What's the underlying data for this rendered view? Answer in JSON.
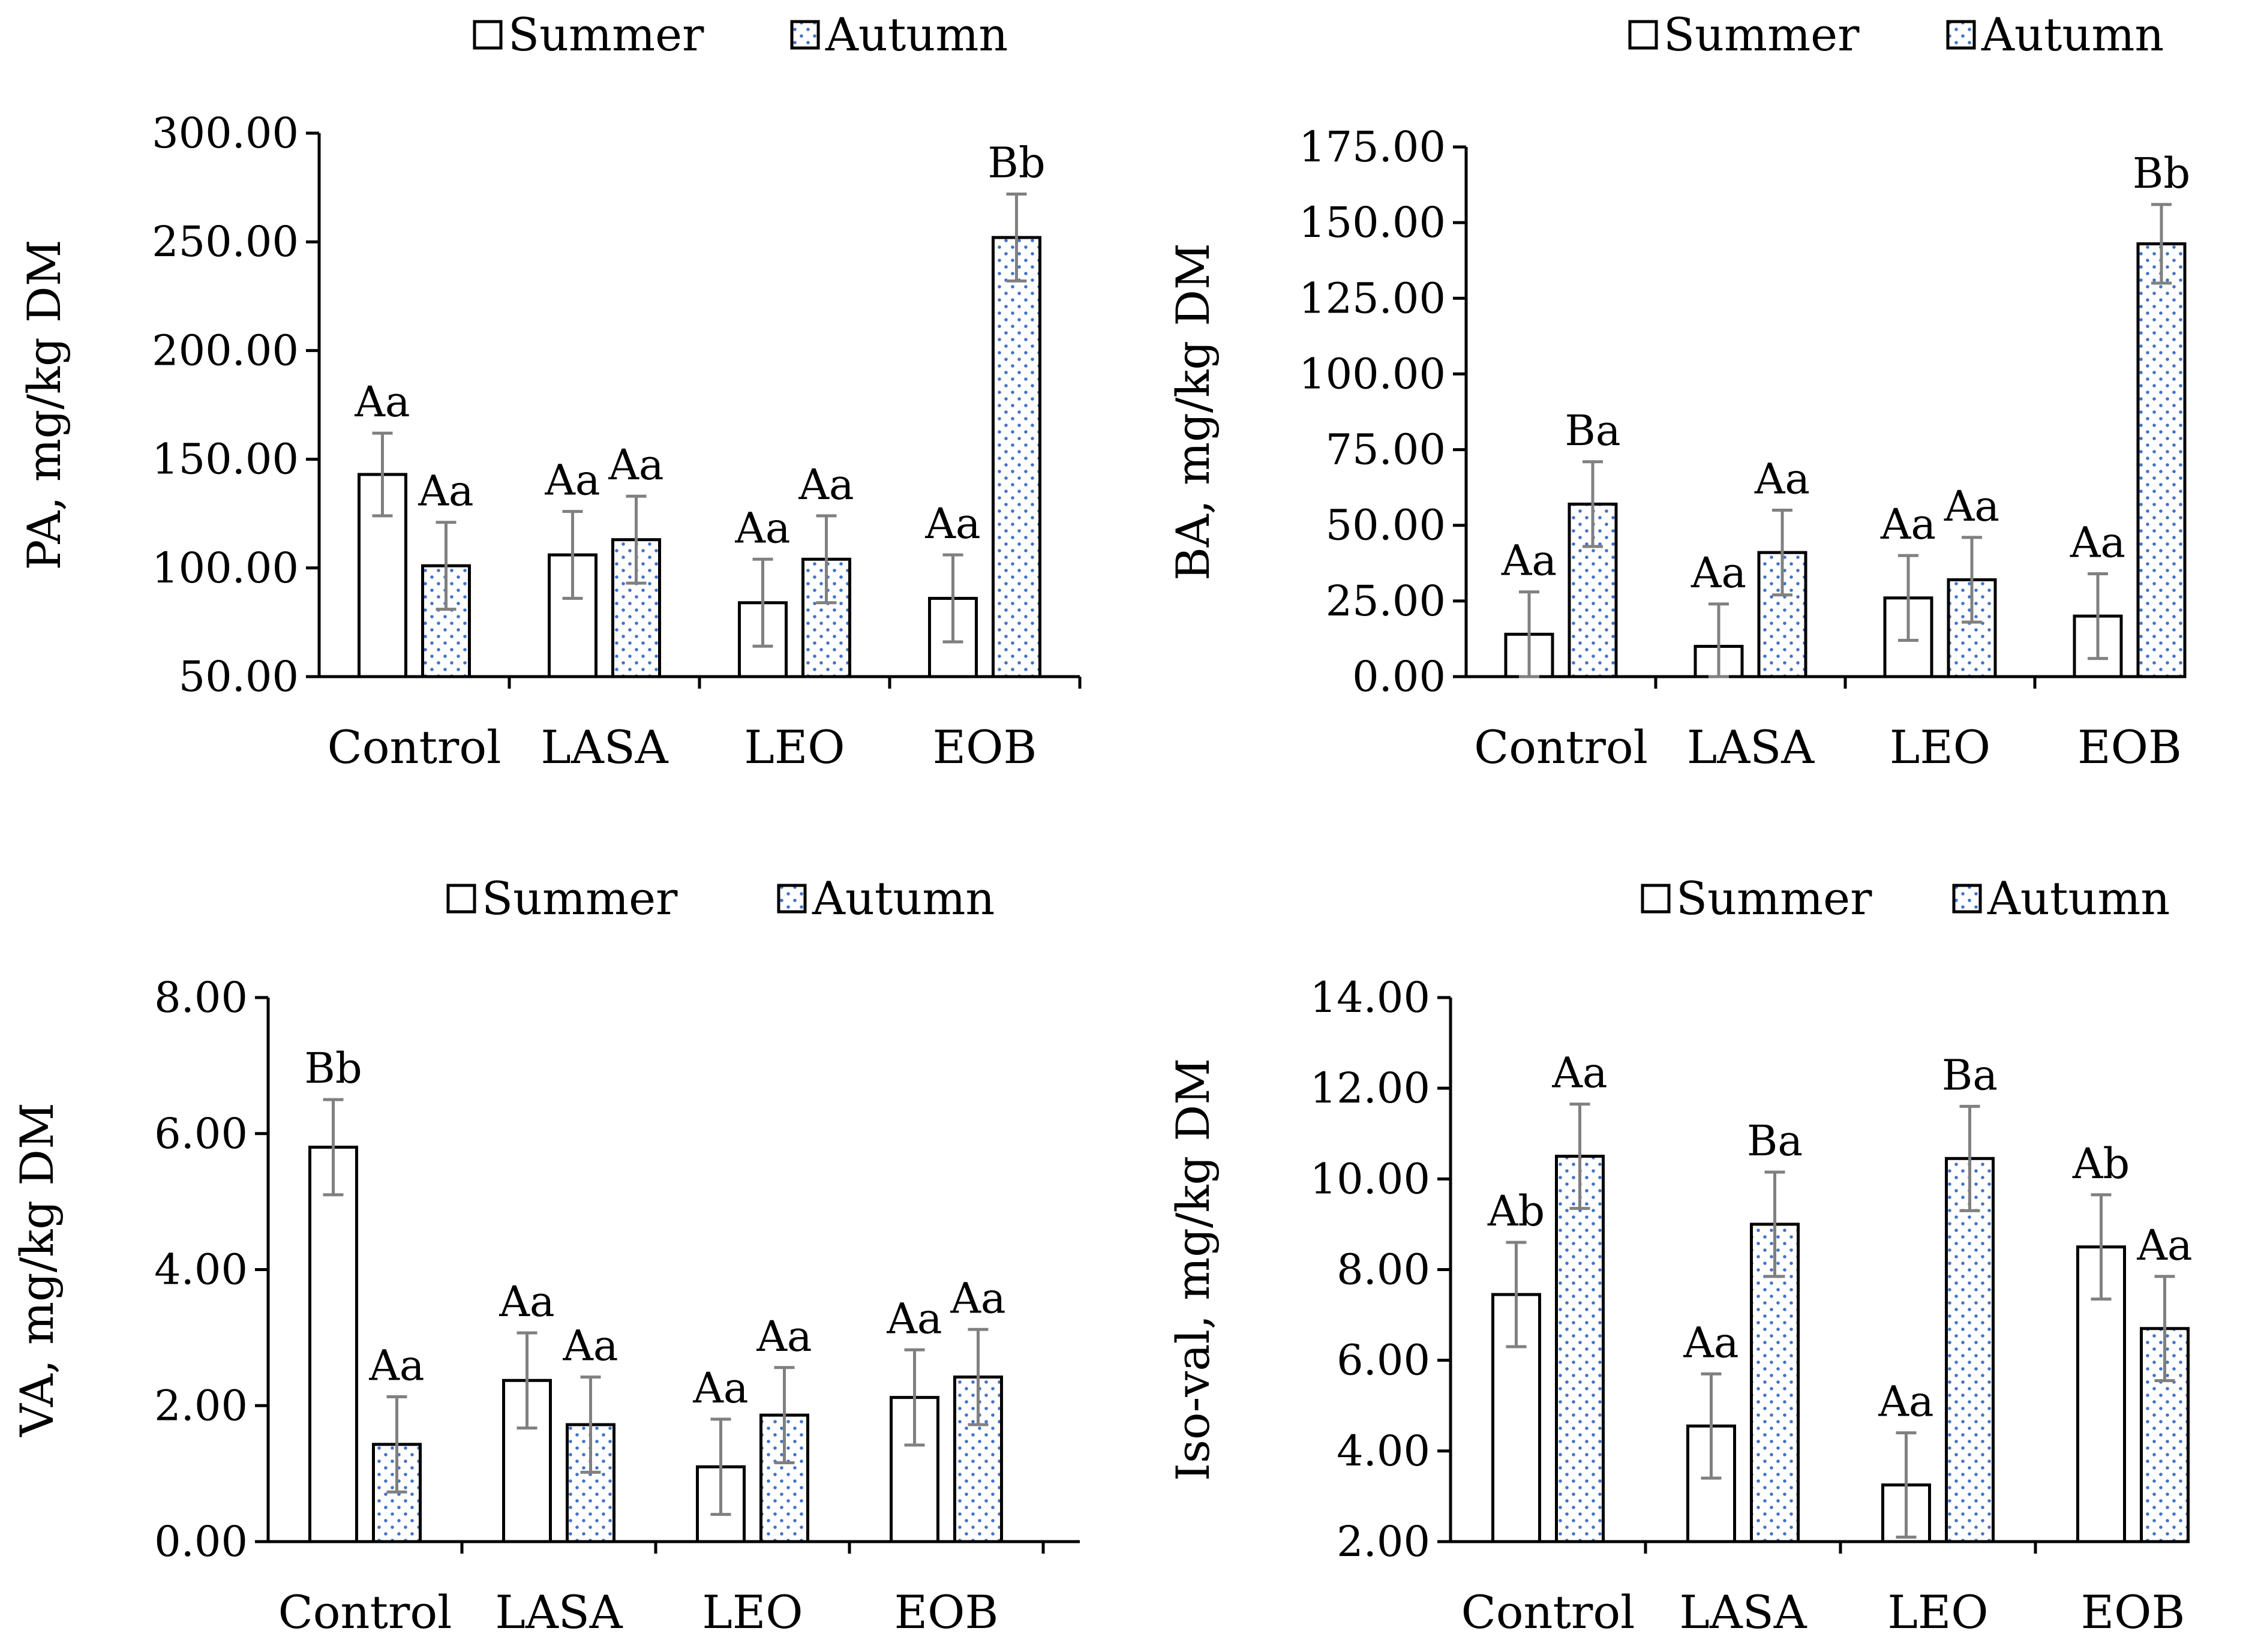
{
  "colors": {
    "summer_fill": "#ffffff",
    "autumn_fill": "#ffffff",
    "autumn_dots": "#4472c4",
    "error_bar": "#808080",
    "axis": "#000000"
  },
  "legend": {
    "summer": "Summer",
    "autumn": "Autumn"
  },
  "chart_data": [
    {
      "type": "bar",
      "ylabel": "PA,  mg/kg DM",
      "ylim": [
        50,
        300
      ],
      "yticks": [
        "50.00",
        "100.00",
        "150.00",
        "200.00",
        "250.00",
        "300.00"
      ],
      "categories": [
        "Control",
        "LASA",
        "LEO",
        "EOB"
      ],
      "series": [
        {
          "name": "Summer",
          "values": [
            143,
            106,
            84,
            86
          ],
          "errors": [
            19,
            20,
            20,
            20
          ],
          "labels": [
            "Aa",
            "Aa",
            "Aa",
            "Aa"
          ]
        },
        {
          "name": "Autumn",
          "values": [
            101,
            113,
            104,
            252
          ],
          "errors": [
            20,
            20,
            20,
            20
          ],
          "labels": [
            "Aa",
            "Aa",
            "Aa",
            "Bb"
          ]
        }
      ]
    },
    {
      "type": "bar",
      "ylabel": "BA, mg/kg DM",
      "ylim": [
        0,
        175
      ],
      "yticks": [
        "0.00",
        "25.00",
        "50.00",
        "75.00",
        "100.00",
        "125.00",
        "150.00",
        "175.00"
      ],
      "categories": [
        "Control",
        "LASA",
        "LEO",
        "EOB"
      ],
      "series": [
        {
          "name": "Summer",
          "values": [
            14,
            10,
            26,
            20
          ],
          "errors": [
            14,
            14,
            14,
            14
          ],
          "labels": [
            "Aa",
            "Aa",
            "Aa",
            "Aa"
          ]
        },
        {
          "name": "Autumn",
          "values": [
            57,
            41,
            32,
            143
          ],
          "errors": [
            14,
            14,
            14,
            13
          ],
          "labels": [
            "Ba",
            "Aa",
            "Aa",
            "Bb"
          ]
        }
      ]
    },
    {
      "type": "bar",
      "ylabel": "VA, mg/kg DM",
      "ylim": [
        0,
        8
      ],
      "yticks": [
        "0.00",
        "2.00",
        "4.00",
        "6.00",
        "8.00"
      ],
      "categories": [
        "Control",
        "LASA",
        "LEO",
        "EOB"
      ],
      "series": [
        {
          "name": "Summer",
          "values": [
            5.8,
            2.37,
            1.1,
            2.12
          ],
          "errors": [
            0.7,
            0.7,
            0.7,
            0.7
          ],
          "labels": [
            "Bb",
            "Aa",
            "Aa",
            "Aa"
          ]
        },
        {
          "name": "Autumn",
          "values": [
            1.43,
            1.72,
            1.86,
            2.42
          ],
          "errors": [
            0.7,
            0.7,
            0.7,
            0.7
          ],
          "labels": [
            "Aa",
            "Aa",
            "Aa",
            "Aa"
          ]
        }
      ]
    },
    {
      "type": "bar",
      "ylabel": "Iso-val, mg/kg DM",
      "ylim": [
        2,
        14
      ],
      "yticks": [
        "2.00",
        "4.00",
        "6.00",
        "8.00",
        "10.00",
        "12.00",
        "14.00"
      ],
      "categories": [
        "Control",
        "LASA",
        "LEO",
        "EOB"
      ],
      "series": [
        {
          "name": "Summer",
          "values": [
            7.45,
            4.55,
            3.25,
            8.5
          ],
          "errors": [
            1.15,
            1.15,
            1.15,
            1.15
          ],
          "labels": [
            "Ab",
            "Aa",
            "Aa",
            "Ab"
          ]
        },
        {
          "name": "Autumn",
          "values": [
            10.5,
            9.0,
            10.45,
            6.7
          ],
          "errors": [
            1.15,
            1.15,
            1.15,
            1.15
          ],
          "labels": [
            "Aa",
            "Ba",
            "Ba",
            "Aa"
          ]
        }
      ]
    }
  ]
}
